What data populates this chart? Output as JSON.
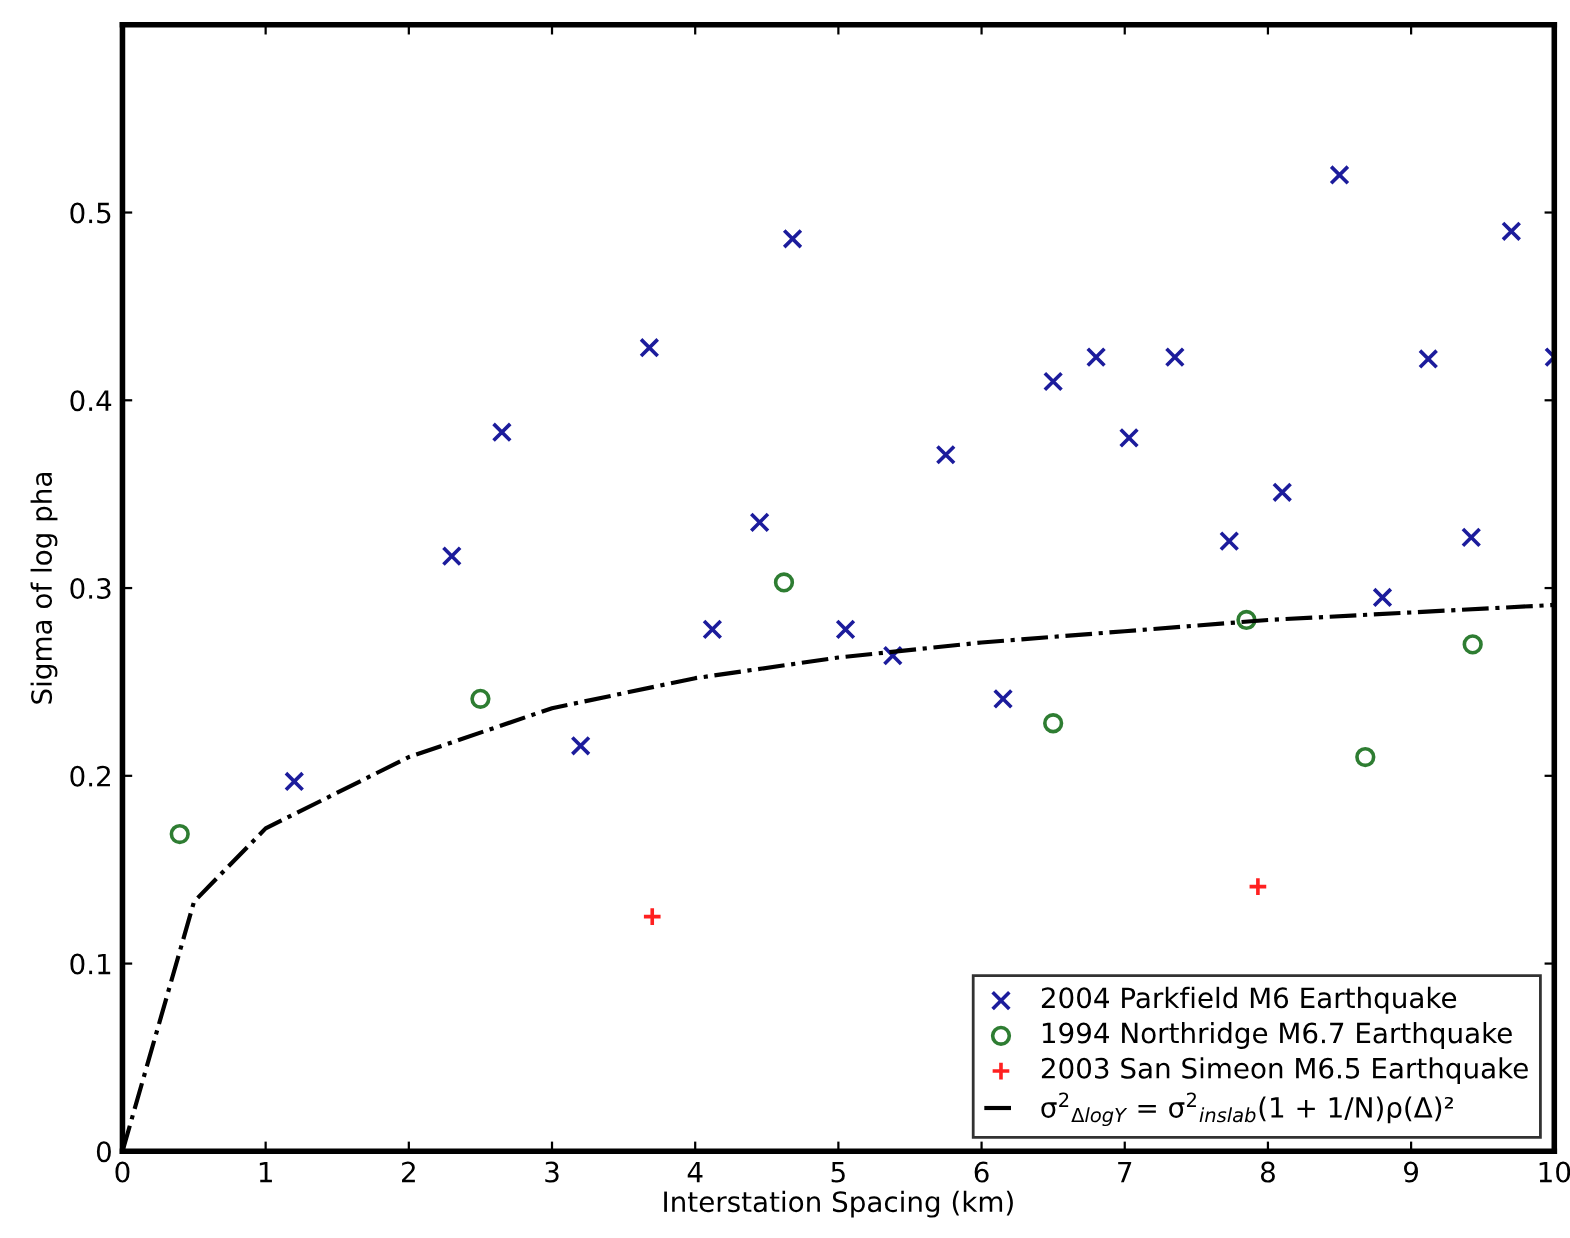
{
  "chart_data": {
    "type": "scatter",
    "xlabel": "Interstation Spacing (km)",
    "ylabel": "Sigma of log pha",
    "xlim": [
      0,
      10
    ],
    "ylim": [
      0,
      0.6
    ],
    "xticks": [
      0,
      1,
      2,
      3,
      4,
      5,
      6,
      7,
      8,
      9,
      10
    ],
    "yticks": [
      0,
      0.1,
      0.2,
      0.3,
      0.4,
      0.5
    ],
    "legend": "bottom right",
    "grid": false,
    "series": [
      {
        "name": "2004 Parkfield M6 Earthquake",
        "marker": "cross",
        "color": "#1c1c9c",
        "x": [
          1.2,
          2.3,
          2.65,
          3.2,
          3.68,
          4.12,
          4.45,
          4.68,
          5.05,
          5.38,
          5.75,
          6.15,
          6.5,
          6.8,
          7.03,
          7.35,
          7.73,
          8.1,
          8.5,
          8.8,
          9.12,
          9.42,
          9.7,
          10.0
        ],
        "values": [
          0.197,
          0.317,
          0.383,
          0.216,
          0.428,
          0.278,
          0.335,
          0.486,
          0.278,
          0.264,
          0.371,
          0.241,
          0.41,
          0.423,
          0.38,
          0.423,
          0.325,
          0.351,
          0.52,
          0.295,
          0.422,
          0.327,
          0.49,
          0.423
        ]
      },
      {
        "name": "1994 Northridge M6.7 Earthquake",
        "marker": "circle",
        "color": "#2e7d32",
        "x": [
          0.4,
          2.5,
          4.62,
          6.5,
          7.85,
          8.68,
          9.43
        ],
        "values": [
          0.169,
          0.241,
          0.303,
          0.228,
          0.283,
          0.21,
          0.27
        ]
      },
      {
        "name": "2003 San Simeon M6.5 Earthquake",
        "marker": "plus",
        "color": "#ff2020",
        "x": [
          3.7,
          7.93
        ],
        "values": [
          0.125,
          0.141
        ]
      },
      {
        "name": "σ$^{2}$$_{ΔlogY}$ = σ$^{2}$$_{inslab}$(1 + 1/N)ρ(Δ)²",
        "type": "line",
        "line_style": "dashdot",
        "color": "#000000",
        "x": [
          0,
          0.5,
          1,
          2,
          3,
          4,
          5,
          6,
          7,
          8,
          9,
          10
        ],
        "values": [
          0,
          0.133,
          0.172,
          0.21,
          0.236,
          0.252,
          0.263,
          0.271,
          0.277,
          0.283,
          0.287,
          0.291
        ]
      }
    ]
  }
}
